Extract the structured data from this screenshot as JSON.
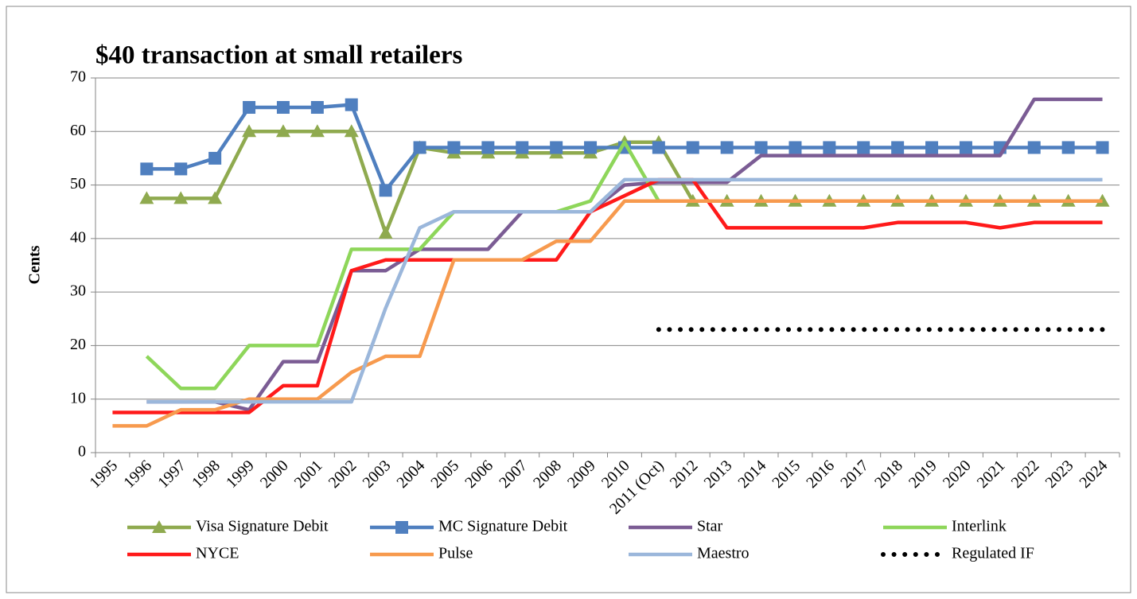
{
  "chart_data": {
    "type": "line",
    "title": "$40 transaction at small retailers",
    "y_label": "Cents",
    "categories": [
      "1995",
      "1996",
      "1997",
      "1998",
      "1999",
      "2000",
      "2001",
      "2002",
      "2003",
      "2004",
      "2005",
      "2006",
      "2007",
      "2008",
      "2009",
      "2010",
      "2011 (Oct)",
      "2012",
      "2013",
      "2014",
      "2015",
      "2016",
      "2017",
      "2018",
      "2019",
      "2020",
      "2021",
      "2022",
      "2023",
      "2024"
    ],
    "ylim": [
      0,
      70
    ],
    "yticks": [
      0,
      10,
      20,
      30,
      40,
      50,
      60,
      70
    ],
    "grid": true,
    "series": [
      {
        "name": "Visa Signature Debit",
        "color": "#8faa4f",
        "marker": "triangle",
        "values": [
          null,
          47.5,
          47.5,
          47.5,
          60,
          60,
          60,
          60,
          41,
          57,
          56,
          56,
          56,
          56,
          56,
          58,
          58,
          47,
          47,
          47,
          47,
          47,
          47,
          47,
          47,
          47,
          47,
          47,
          47,
          47
        ]
      },
      {
        "name": "MC Signature Debit",
        "color": "#4f7fbf",
        "marker": "square",
        "values": [
          null,
          53,
          53,
          55,
          64.5,
          64.5,
          64.5,
          65,
          49,
          57,
          57,
          57,
          57,
          57,
          57,
          57,
          57,
          57,
          57,
          57,
          57,
          57,
          57,
          57,
          57,
          57,
          57,
          57,
          57,
          57
        ]
      },
      {
        "name": "Star",
        "color": "#7b5c94",
        "values": [
          null,
          9.5,
          9.5,
          9.5,
          8,
          17,
          17,
          34,
          34,
          38,
          38,
          38,
          45,
          45,
          45,
          50,
          50.5,
          50.5,
          50.5,
          55.5,
          55.5,
          55.5,
          55.5,
          55.5,
          55.5,
          55.5,
          55.5,
          66,
          66,
          66
        ]
      },
      {
        "name": "Interlink",
        "color": "#8ed65a",
        "values": [
          null,
          18,
          12,
          12,
          20,
          20,
          20,
          38,
          38,
          38,
          45,
          45,
          45,
          45,
          47,
          58,
          47,
          47,
          47,
          47,
          47,
          47,
          47,
          47,
          47,
          47,
          47,
          47,
          47,
          47
        ]
      },
      {
        "name": "NYCE",
        "color": "#ff1a1a",
        "values": [
          7.5,
          7.5,
          7.5,
          7.5,
          7.5,
          12.5,
          12.5,
          34,
          36,
          36,
          36,
          36,
          36,
          36,
          45,
          48,
          51,
          51,
          42,
          42,
          42,
          42,
          42,
          43,
          43,
          43,
          42,
          43,
          43,
          43
        ]
      },
      {
        "name": "Pulse",
        "color": "#f79a4e",
        "values": [
          5,
          5,
          8,
          8,
          10,
          10,
          10,
          15,
          18,
          18,
          36,
          36,
          36,
          39.5,
          39.5,
          47,
          47,
          47,
          47,
          47,
          47,
          47,
          47,
          47,
          47,
          47,
          47,
          47,
          47,
          47
        ]
      },
      {
        "name": "Maestro",
        "color": "#9bb7db",
        "values": [
          null,
          9.5,
          9.5,
          9.5,
          9.5,
          9.5,
          9.5,
          9.5,
          27,
          42,
          45,
          45,
          45,
          45,
          45,
          51,
          51,
          51,
          51,
          51,
          51,
          51,
          51,
          51,
          51,
          51,
          51,
          51,
          51,
          51
        ]
      },
      {
        "name": "Regulated IF",
        "color": "#000000",
        "dash": "dotted",
        "values": [
          null,
          null,
          null,
          null,
          null,
          null,
          null,
          null,
          null,
          null,
          null,
          null,
          null,
          null,
          null,
          null,
          23,
          23,
          23,
          23,
          23,
          23,
          23,
          23,
          23,
          23,
          23,
          23,
          23,
          23
        ]
      }
    ]
  }
}
